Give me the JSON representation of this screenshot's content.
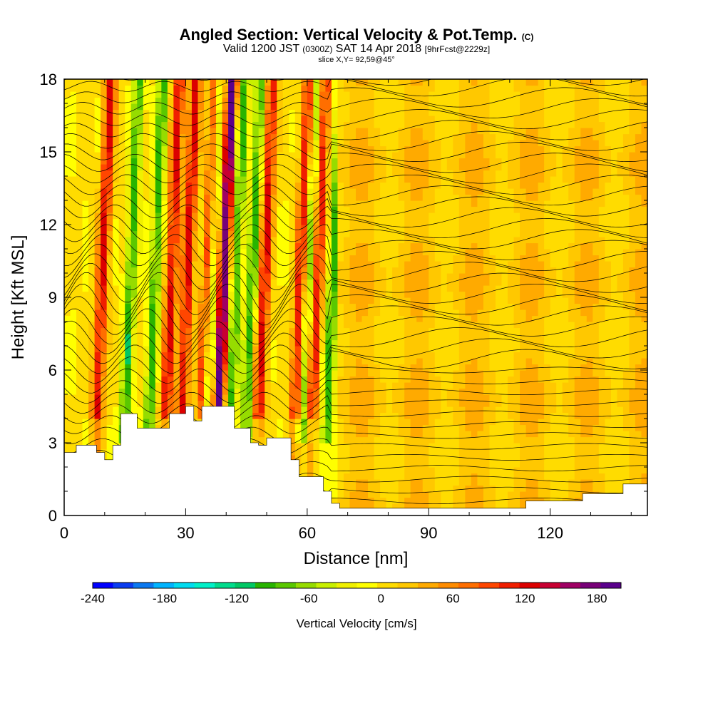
{
  "header": {
    "title": "Angled Section: Vertical Velocity & Pot.Temp.",
    "title_tag": "(C)",
    "valid_prefix": "Valid 1200 JST",
    "valid_z": "(0300Z)",
    "valid_date": "SAT 14 Apr 2018",
    "fcst": "[9hrFcst@2229z]",
    "slice": "slice X,Y= 92,59@45°"
  },
  "chart_data": {
    "type": "heatmap",
    "xlabel": "Distance [nm]",
    "ylabel": "Height [Kft MSL]",
    "xlim": [
      0,
      144
    ],
    "ylim": [
      0,
      18
    ],
    "xticks": [
      0,
      30,
      60,
      90,
      120
    ],
    "yticks": [
      0,
      3,
      6,
      9,
      12,
      15,
      18
    ],
    "colorbar": {
      "label": "Vertical Velocity [cm/s]",
      "ticks": [
        -240,
        -180,
        -120,
        -60,
        0,
        60,
        120,
        180
      ],
      "range": [
        -240,
        200
      ],
      "colors": [
        "#0000ff",
        "#0a3cf0",
        "#0a78f0",
        "#00b4ff",
        "#00dcf0",
        "#00f0c8",
        "#00dc8c",
        "#00c864",
        "#28b400",
        "#5ac800",
        "#96dc00",
        "#c8f000",
        "#f0f000",
        "#ffff00",
        "#ffdc00",
        "#ffc800",
        "#ffaa00",
        "#ff8c00",
        "#ff6e00",
        "#ff4600",
        "#f01e00",
        "#dc0000",
        "#c80032",
        "#a00064",
        "#780078",
        "#5a008c"
      ]
    },
    "updraft_columns_nm": [
      7,
      24,
      28,
      33,
      37,
      47,
      56,
      60
    ],
    "downdraft_columns_nm": [
      14,
      20,
      34,
      40,
      44,
      58,
      64,
      134
    ],
    "terrain_kft": [
      [
        0,
        2.6
      ],
      [
        3,
        2.9
      ],
      [
        8,
        2.6
      ],
      [
        10,
        2.3
      ],
      [
        12,
        2.9
      ],
      [
        14,
        4.2
      ],
      [
        16,
        4.2
      ],
      [
        18,
        3.6
      ],
      [
        24,
        3.6
      ],
      [
        26,
        4.2
      ],
      [
        30,
        4.5
      ],
      [
        32,
        3.9
      ],
      [
        34,
        4.5
      ],
      [
        38,
        4.5
      ],
      [
        42,
        3.6
      ],
      [
        46,
        3.0
      ],
      [
        48,
        2.9
      ],
      [
        50,
        3.2
      ],
      [
        54,
        3.2
      ],
      [
        56,
        2.3
      ],
      [
        58,
        1.6
      ],
      [
        62,
        1.6
      ],
      [
        64,
        1.0
      ],
      [
        66,
        0.5
      ],
      [
        68,
        0.3
      ],
      [
        112,
        0.3
      ],
      [
        114,
        0.6
      ],
      [
        128,
        0.9
      ],
      [
        138,
        1.3
      ],
      [
        144,
        1.3
      ]
    ]
  }
}
